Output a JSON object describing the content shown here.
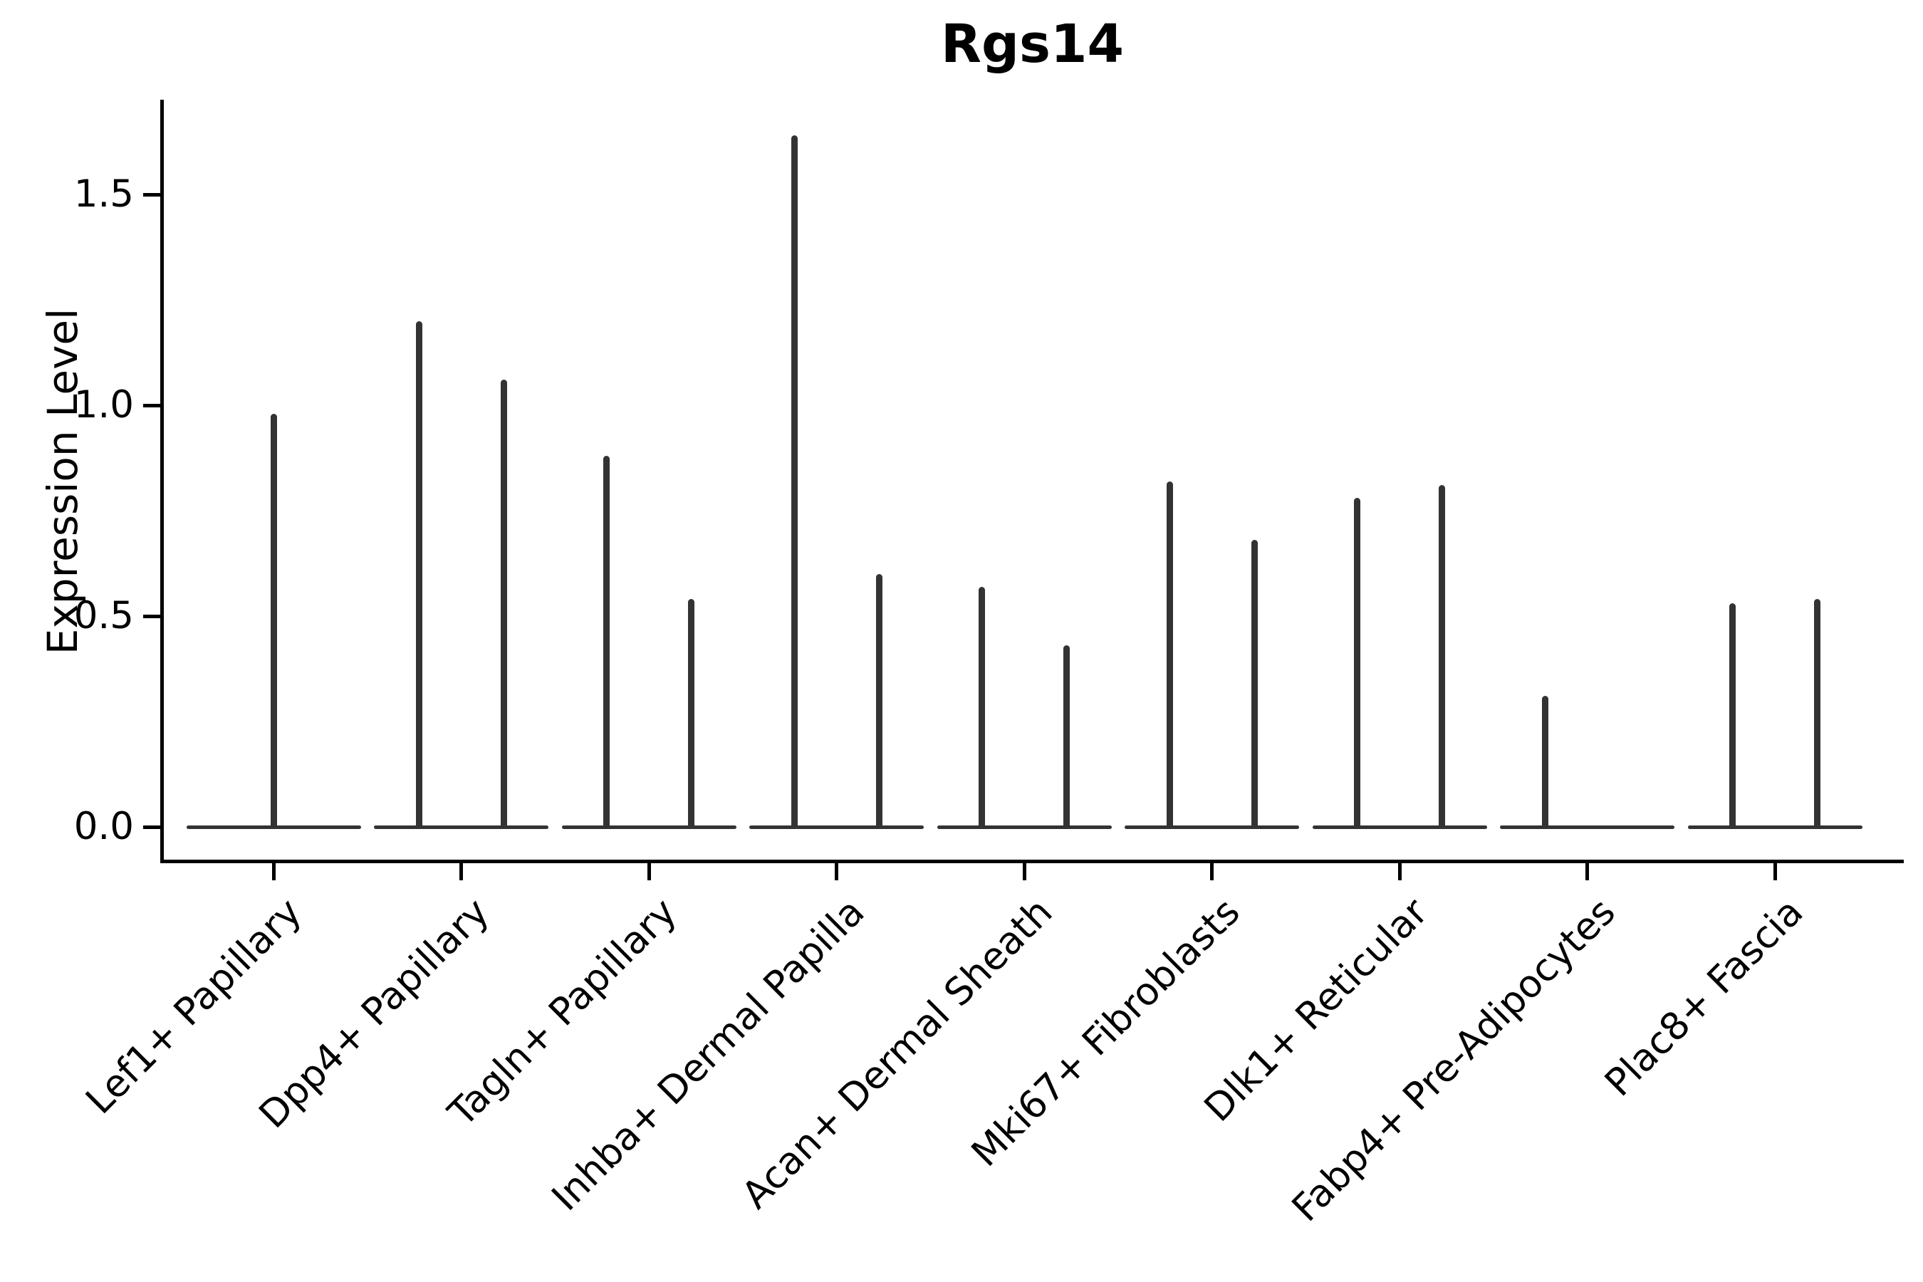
{
  "chart_data": {
    "type": "violin",
    "title": "Rgs14",
    "xlabel": "",
    "ylabel": "Expression Level",
    "y_ticks": [
      {
        "label": "0.0",
        "value": 0.0
      },
      {
        "label": "0.5",
        "value": 0.5
      },
      {
        "label": "1.0",
        "value": 1.0
      },
      {
        "label": "1.5",
        "value": 1.5
      }
    ],
    "y_range": [
      -0.08,
      1.73
    ],
    "grid": false,
    "legend": "none",
    "style_note": "Single-cell expression violin plot; each violin collapses to a wide flat base at expression 0 with a thin vertical spike rising to the maximum expression value. Most categories contain two side-by-side violins (left/right); Lef1+ Papillary has one centered violin and Fabp4+ Pre-Adipocytes shows a spike only in the left violin.",
    "categories": [
      "Lef1+ Papillary",
      "Dpp4+ Papillary",
      "Tagln+ Papillary",
      "Inhba+ Dermal Papilla",
      "Acan+ Dermal Sheath",
      "Mki67+ Fibroblasts",
      "Dlk1+ Reticular",
      "Fabp4+ Pre-Adipocytes",
      "Plac8+ Fascia"
    ],
    "violins": [
      {
        "category": "Lef1+ Papillary",
        "spikes": [
          {
            "slot": "center",
            "max_expression": 0.98
          }
        ]
      },
      {
        "category": "Dpp4+ Papillary",
        "spikes": [
          {
            "slot": "left",
            "max_expression": 1.2
          },
          {
            "slot": "right",
            "max_expression": 1.06
          }
        ]
      },
      {
        "category": "Tagln+ Papillary",
        "spikes": [
          {
            "slot": "left",
            "max_expression": 0.88
          },
          {
            "slot": "right",
            "max_expression": 0.54
          }
        ]
      },
      {
        "category": "Inhba+ Dermal Papilla",
        "spikes": [
          {
            "slot": "left",
            "max_expression": 1.64
          },
          {
            "slot": "right",
            "max_expression": 0.6
          }
        ]
      },
      {
        "category": "Acan+ Dermal Sheath",
        "spikes": [
          {
            "slot": "left",
            "max_expression": 0.57
          },
          {
            "slot": "right",
            "max_expression": 0.43
          }
        ]
      },
      {
        "category": "Mki67+ Fibroblasts",
        "spikes": [
          {
            "slot": "left",
            "max_expression": 0.82
          },
          {
            "slot": "right",
            "max_expression": 0.68
          }
        ]
      },
      {
        "category": "Dlk1+ Reticular",
        "spikes": [
          {
            "slot": "left",
            "max_expression": 0.78
          },
          {
            "slot": "right",
            "max_expression": 0.81
          }
        ]
      },
      {
        "category": "Fabp4+ Pre-Adipocytes",
        "spikes": [
          {
            "slot": "left",
            "max_expression": 0.31
          }
        ]
      },
      {
        "category": "Plac8+ Fascia",
        "spikes": [
          {
            "slot": "left",
            "max_expression": 0.53
          },
          {
            "slot": "right",
            "max_expression": 0.54
          }
        ]
      }
    ],
    "colors": {
      "violin": "#333333",
      "axis": "#000000",
      "text": "#000000",
      "background": "#ffffff"
    }
  }
}
